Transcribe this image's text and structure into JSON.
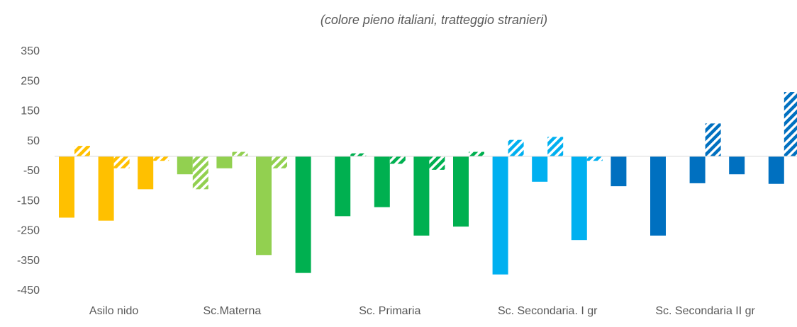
{
  "chart_data": {
    "type": "bar",
    "subtitle": "(colore pieno italiani, tratteggio stranieri)",
    "categories": [
      null,
      "Asilo nido",
      null,
      null,
      "Sc.Materna",
      null,
      null,
      null,
      "Sc. Primaria",
      null,
      null,
      null,
      "Sc. Secondaria. I gr",
      null,
      null,
      null,
      "Sc. Secondaria II gr",
      null,
      null
    ],
    "colors": [
      "#FFC000",
      "#FFC000",
      "#FFC000",
      "#92D050",
      "#92D050",
      "#92D050",
      "#00B050",
      "#00B050",
      "#00B050",
      "#00B050",
      "#00B050",
      "#00B0F0",
      "#00B0F0",
      "#00B0F0",
      "#0070C0",
      "#0070C0",
      "#0070C0",
      "#0070C0",
      "#0070C0"
    ],
    "series": [
      {
        "hatched": false,
        "values": [
          -205,
          -215,
          -110,
          -60,
          -40,
          -330,
          -390,
          -200,
          -170,
          -265,
          -235,
          -395,
          -85,
          -280,
          -100,
          -265,
          -90,
          -60,
          -92
        ]
      },
      {
        "hatched": true,
        "values": [
          35,
          -40,
          -15,
          -110,
          15,
          -40,
          0,
          10,
          -25,
          -45,
          15,
          55,
          65,
          -15,
          0,
          0,
          110,
          0,
          215
        ]
      }
    ],
    "ylim": [
      -450,
      350
    ],
    "yticks": [
      -450,
      -350,
      -250,
      -150,
      -50,
      50,
      150,
      250,
      350
    ],
    "grid": false
  }
}
